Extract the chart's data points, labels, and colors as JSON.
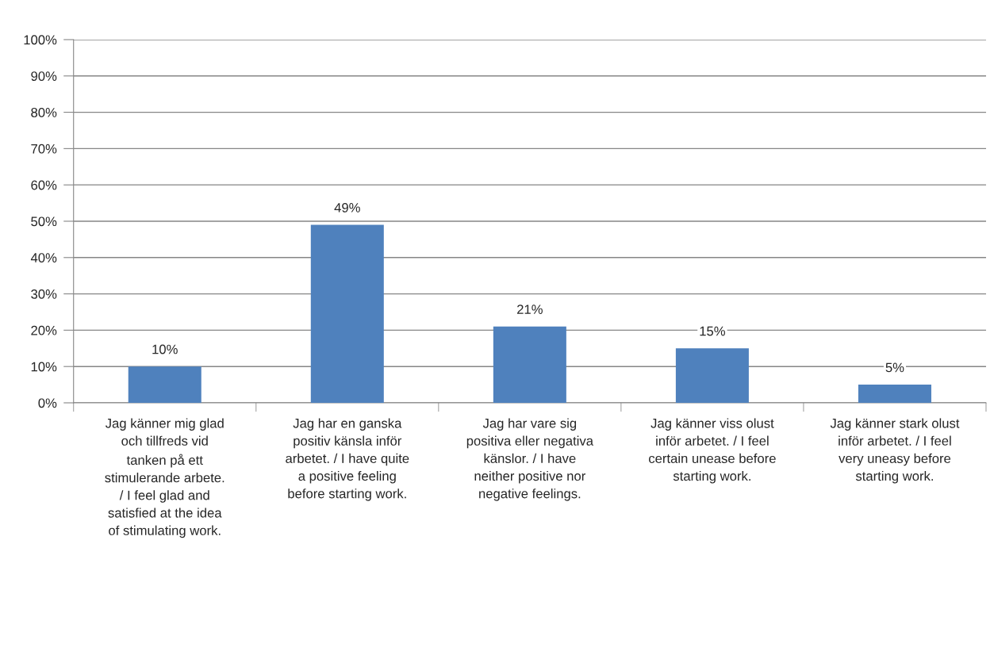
{
  "chart_data": {
    "type": "bar",
    "categories": [
      "Jag känner mig glad\noch tillfreds vid\ntanken på ett\nstimulerande arbete.\n/ I feel glad and\nsatisfied at the idea\nof stimulating work.",
      "Jag har en ganska\npositiv känsla inför\narbetet. / I have quite\na positive feeling\nbefore starting work.",
      "Jag har vare sig\npositiva eller negativa\nkänslor. / I have\nneither positive nor\nnegative feelings.",
      "Jag känner viss olust\ninför arbetet. / I feel\ncertain unease before\nstarting work.",
      "Jag känner stark olust\ninför arbetet. / I feel\nvery uneasy before\nstarting work."
    ],
    "values": [
      10,
      49,
      21,
      15,
      5
    ],
    "color": "#4f81bd",
    "value_labels": [
      "10%",
      "49%",
      "21%",
      "15%",
      "5%"
    ],
    "ylim": [
      0,
      100
    ],
    "yticks": [
      {
        "value": 0,
        "label": "0%"
      },
      {
        "value": 10,
        "label": "10%"
      },
      {
        "value": 20,
        "label": "20%"
      },
      {
        "value": 30,
        "label": "30%"
      },
      {
        "value": 40,
        "label": "40%"
      },
      {
        "value": 50,
        "label": "50%"
      },
      {
        "value": 60,
        "label": "60%"
      },
      {
        "value": 70,
        "label": "70%"
      },
      {
        "value": 80,
        "label": "80%"
      },
      {
        "value": 90,
        "label": "90%"
      },
      {
        "value": 100,
        "label": "100%"
      }
    ],
    "grid": "y",
    "legend": false
  }
}
